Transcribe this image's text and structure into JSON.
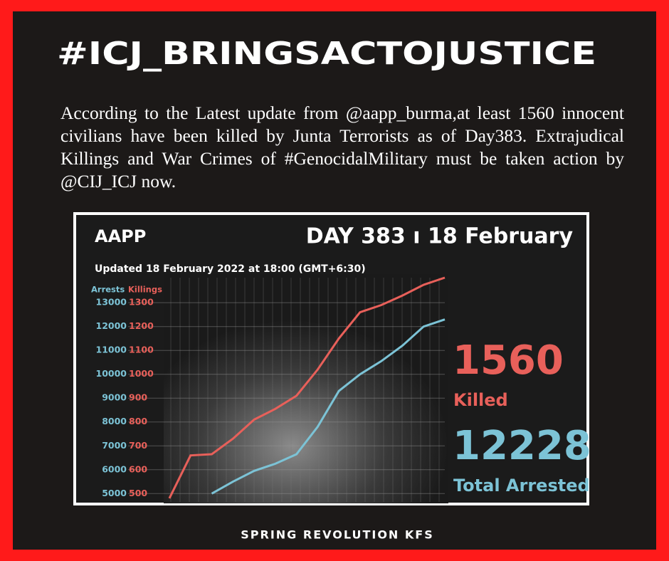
{
  "header": {
    "title": "#ICJ_BRINGSACTOJUSTICE",
    "text": "According to the Latest update from @aapp_burma,at least 1560 innocent civilians have been killed by Junta Terrorists as of Day383. Extrajudical Killings and War Crimes of #GenocidalMilitary must be taken action by @CIJ_ICJ now."
  },
  "chart_data": {
    "type": "line",
    "title": "AAPP",
    "subtitle": "DAY 383 ı 18 February",
    "note": "Updated 18 February 2022 at 18:00 (GMT+6:30)",
    "ylabel": "Arrests",
    "y2label": "Killings",
    "series": [
      {
        "name": "Killings",
        "color": "#e8605a",
        "axis": "y2",
        "values": [
          480,
          660,
          665,
          730,
          810,
          855,
          910,
          1020,
          1150,
          1260,
          1290,
          1330,
          1375,
          1405
        ]
      },
      {
        "name": "Arrests",
        "color": "#7cc3d6",
        "values": [
          null,
          null,
          5000,
          5500,
          5950,
          6250,
          6650,
          7800,
          9300,
          10000,
          10550,
          11200,
          12000,
          12300
        ]
      }
    ],
    "ylim": [
      4650,
      14050
    ],
    "yticks": [
      5000,
      6000,
      7000,
      8000,
      9000,
      10000,
      11000,
      12000,
      13000
    ],
    "y2lim": [
      465,
      1405
    ],
    "y2ticks": [
      500,
      600,
      700,
      800,
      900,
      1000,
      1100,
      1200,
      1300
    ],
    "grid": true,
    "stats": [
      {
        "value": 1560,
        "label": "Killed",
        "color": "#e8605a"
      },
      {
        "value": 12228,
        "label": "Total Arrested",
        "color": "#7cc3d6"
      }
    ]
  },
  "footer": "SPRING REVOLUTION KFS"
}
